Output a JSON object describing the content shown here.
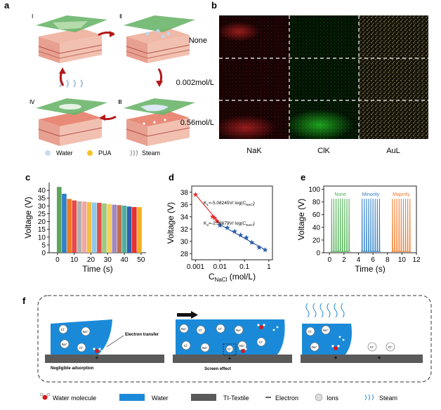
{
  "panel_labels": {
    "a": "a",
    "b": "b",
    "c": "c",
    "d": "d",
    "e": "e",
    "f": "f"
  },
  "panel_a": {
    "steps": [
      "Ⅰ",
      "Ⅱ",
      "Ⅲ",
      "Ⅳ"
    ],
    "legend": [
      "Water",
      "PUA",
      "Steam"
    ]
  },
  "panel_b": {
    "rows": [
      "None",
      "0.002mol/L",
      "0.56mol/L"
    ],
    "columns": [
      "NaK",
      "ClK",
      "AuL"
    ],
    "colors": {
      "NaK": "#d01818",
      "ClK": "#18c018",
      "AuL": "#d8cfa0"
    }
  },
  "panel_f": {
    "ions": {
      "cl": "Cl⁻",
      "na": "Na⁺"
    },
    "callouts": [
      "Electron transfer",
      "Negligible adsorption",
      "Screen effect"
    ],
    "legend": [
      "Water molecule",
      "Water",
      "TI-Textile",
      "Electron",
      "Ions",
      "Steam"
    ]
  },
  "chart_data": [
    {
      "type": "bar",
      "panel": "c",
      "xlabel": "Time (s)",
      "ylabel": "Voltage (V)",
      "xlim": [
        -5,
        53
      ],
      "ylim": [
        0,
        45
      ],
      "xticks": [
        0,
        10,
        20,
        30,
        40,
        50
      ],
      "yticks": [
        0,
        5,
        10,
        15,
        20,
        25,
        30,
        35,
        40
      ],
      "x": [
        1,
        4,
        7,
        10,
        13,
        16,
        19,
        22,
        25,
        28,
        31,
        34,
        37,
        40,
        43,
        46,
        49
      ],
      "values": [
        42.2,
        37.8,
        34.5,
        33.5,
        33.0,
        32.8,
        32.4,
        32.2,
        32.0,
        31.6,
        31.2,
        30.8,
        30.5,
        30.2,
        29.6,
        29.3,
        29.2
      ],
      "colors": [
        "#5aa55a",
        "#2f80c8",
        "#f07820",
        "#e84848",
        "#b0b0b0",
        "#f0a8a0",
        "#f0c040",
        "#90c8e8",
        "#e05050",
        "#a0c880",
        "#f4d060",
        "#a088c0",
        "#c07050",
        "#50b0a0",
        "#2f60b0",
        "#e83030",
        "#f0b020"
      ]
    },
    {
      "type": "scatter",
      "panel": "d",
      "xlabel": "C",
      "xlabel_sub": "NaCl",
      "xlabel_unit": " (mol/L)",
      "ylabel": "Voltage (V)",
      "xscale": "log",
      "xlim": [
        0.0007,
        1.4
      ],
      "ylim": [
        27,
        39
      ],
      "xticks": [
        0.001,
        0.01,
        0.1,
        1
      ],
      "xticklabels": [
        "0.001",
        "0.01",
        "0.1",
        "1"
      ],
      "yticks": [
        28,
        30,
        32,
        34,
        36,
        38
      ],
      "series": [
        {
          "name": "K1",
          "color": "#e53030",
          "x": [
            0.001,
            0.005,
            0.006,
            0.0075
          ],
          "y": [
            37.6,
            34.0,
            33.8,
            33.3
          ]
        },
        {
          "name": "K2",
          "color": "#2b5ea8",
          "x": [
            0.01,
            0.02,
            0.04,
            0.07,
            0.12,
            0.2,
            0.4,
            0.7
          ],
          "y": [
            32.6,
            32.2,
            31.6,
            31.0,
            30.6,
            29.8,
            29.0,
            28.6
          ]
        }
      ],
      "fits": [
        {
          "color": "#e53030",
          "x": [
            0.001,
            0.0115
          ],
          "y": [
            37.6,
            32.6
          ]
        },
        {
          "color": "#2b5ea8",
          "x": [
            0.0115,
            0.8
          ],
          "y": [
            32.6,
            28.5
          ]
        }
      ],
      "annotations": [
        {
          "k": "K",
          "sub": "1",
          "text": "=-5.08245V/ log(",
          "c": "C",
          "csub": "NaCl",
          "close": ")"
        },
        {
          "k": "K",
          "sub": "2",
          "text": "=-2.59679V/ log(",
          "c": "C",
          "csub": "NaCl",
          "close": ")"
        }
      ]
    },
    {
      "type": "line",
      "panel": "e",
      "xlabel": "Time (s)",
      "ylabel": "Voltage (V)",
      "xlim": [
        -0.8,
        12
      ],
      "ylim": [
        0,
        105
      ],
      "xticks": [
        0,
        2,
        4,
        6,
        8,
        10,
        12
      ],
      "yticks": [
        0,
        20,
        40,
        60,
        80,
        100
      ],
      "series": [
        {
          "name": "None",
          "color": "#4caf50",
          "peak": 85,
          "t": [
            0.3,
            0.6,
            0.9,
            1.2,
            1.5,
            1.8,
            2.1,
            2.4,
            2.7
          ]
        },
        {
          "name": "Minority",
          "color": "#2f7fc7",
          "peak": 85,
          "t": [
            4.5,
            4.8,
            5.1,
            5.4,
            5.7,
            6.0,
            6.3,
            6.6,
            6.9
          ]
        },
        {
          "name": "Majority",
          "color": "#f07b28",
          "peak": 85,
          "t": [
            8.7,
            9.0,
            9.3,
            9.6,
            9.9,
            10.2,
            10.5,
            10.8,
            11.1
          ]
        }
      ]
    }
  ]
}
